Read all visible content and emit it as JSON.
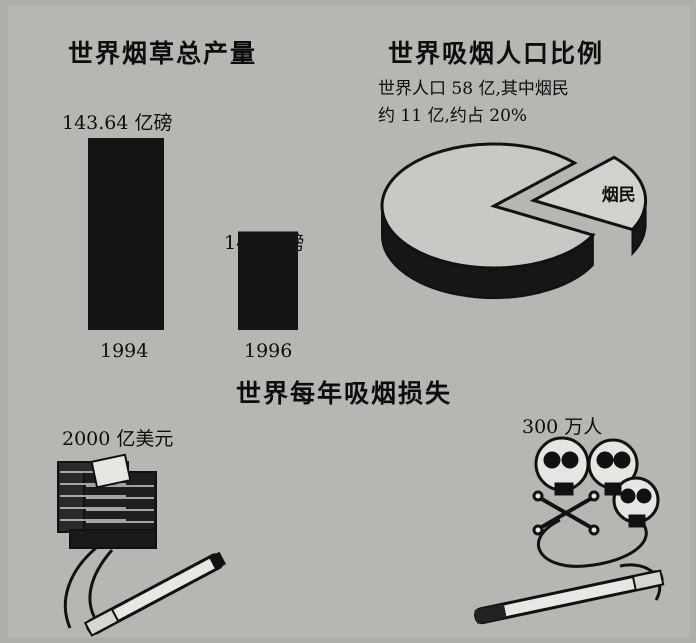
{
  "chart_data": [
    {
      "type": "bar",
      "title": "世界烟草总产量",
      "categories": [
        "1994",
        "1996"
      ],
      "values": [
        143.64,
        142
      ],
      "data_labels": [
        "143.64 亿磅",
        "142 亿磅"
      ],
      "unit": "亿磅"
    },
    {
      "type": "pie",
      "title": "世界吸烟人口比例",
      "annotation_lines": [
        "世界人口 58 亿,其中烟民",
        "约 11 亿,约占 20%"
      ],
      "slices": [
        {
          "label": "",
          "value": 80
        },
        {
          "label": "烟民",
          "value": 20
        }
      ]
    }
  ],
  "losses": {
    "title": "世界每年吸烟损失",
    "money_label": "2000 亿美元",
    "money_icon": "money-stack-icon",
    "deaths_label": "300 万人",
    "deaths_icon": "skulls-icon",
    "cigarette_icon": "cigarette-icon"
  }
}
